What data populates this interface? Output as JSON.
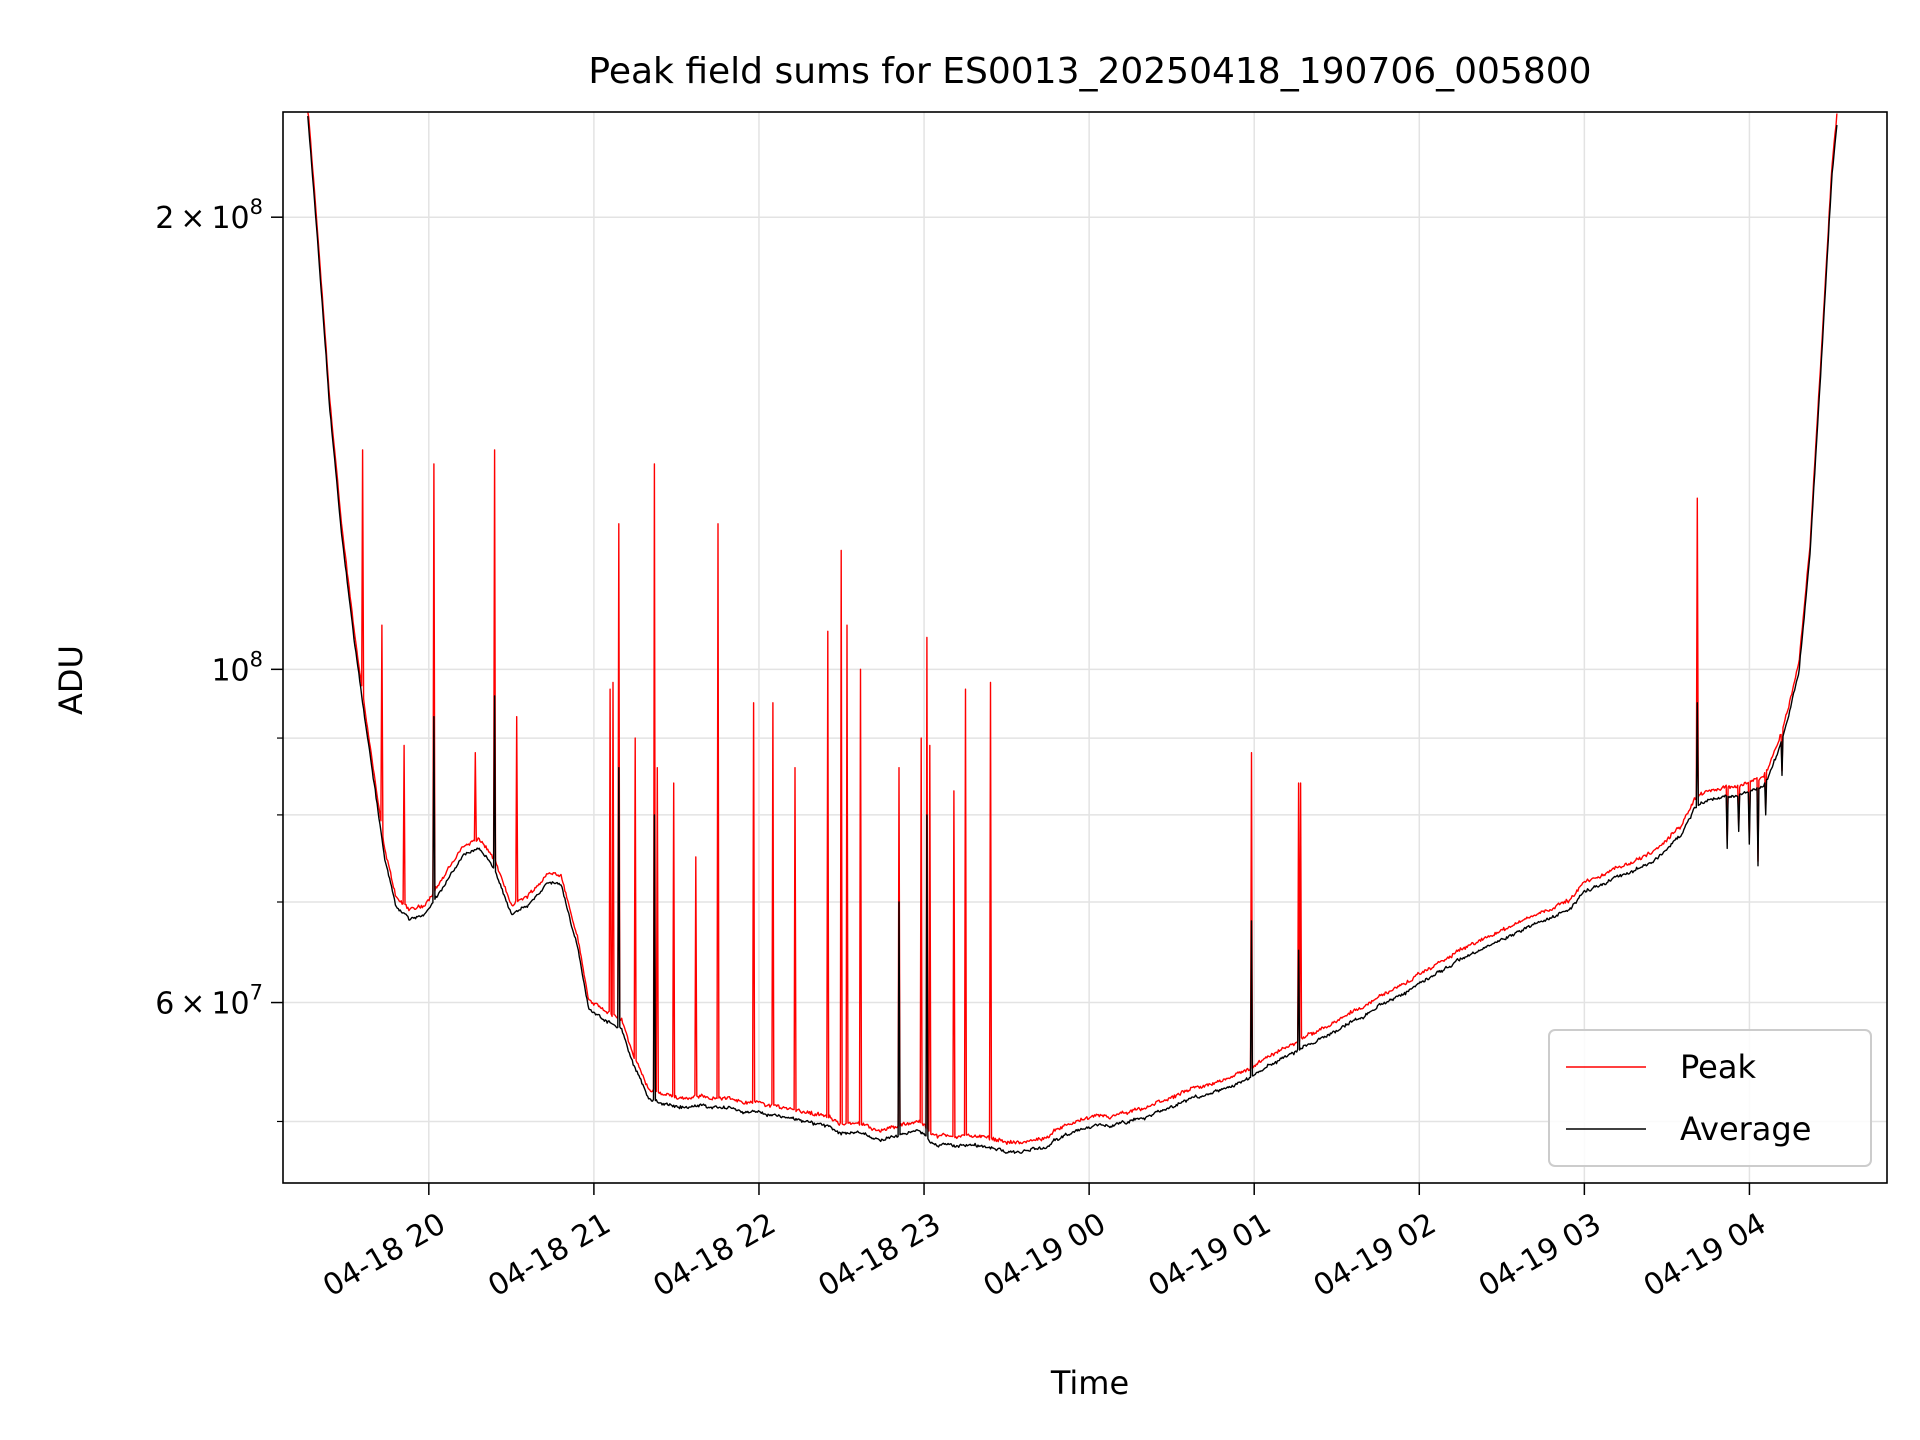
{
  "chart_data": {
    "type": "line",
    "title": "Peak field sums for ES0013_20250418_190706_005800",
    "xlabel": "Time",
    "ylabel": "ADU",
    "yscale": "log",
    "xlim": [
      "2025-04-18 19:07",
      "2025-04-19 04:50"
    ],
    "ylim": [
      45500000,
      235000000
    ],
    "grid": true,
    "legend_position": "lower-right",
    "x_ticks": [
      {
        "t": "2025-04-18 20:00",
        "label": "04-18 20"
      },
      {
        "t": "2025-04-18 21:00",
        "label": "04-18 21"
      },
      {
        "t": "2025-04-18 22:00",
        "label": "04-18 22"
      },
      {
        "t": "2025-04-18 23:00",
        "label": "04-18 23"
      },
      {
        "t": "2025-04-19 00:00",
        "label": "04-19 00"
      },
      {
        "t": "2025-04-19 01:00",
        "label": "04-19 01"
      },
      {
        "t": "2025-04-19 02:00",
        "label": "04-19 02"
      },
      {
        "t": "2025-04-19 03:00",
        "label": "04-19 03"
      },
      {
        "t": "2025-04-19 04:00",
        "label": "04-19 04"
      }
    ],
    "y_ticks_major": [
      {
        "value": 200000000,
        "mantissa": "2",
        "exponent": "8"
      },
      {
        "value": 100000000,
        "mantissa": "",
        "exponent": "8"
      },
      {
        "value": 60000000,
        "mantissa": "6",
        "exponent": "7"
      }
    ],
    "y_ticks_minor": [
      50000000,
      70000000,
      80000000,
      90000000
    ],
    "tick_multiply_sign": "×",
    "tick_base": "10",
    "series": [
      {
        "name": "Peak",
        "color": "#ff0000",
        "baseline": [
          [
            "2025-04-18 19:16",
            235000000
          ],
          [
            "2025-04-18 19:19",
            200000000
          ],
          [
            "2025-04-18 19:24",
            150000000
          ],
          [
            "2025-04-18 19:28",
            125000000
          ],
          [
            "2025-04-18 19:33",
            105000000
          ],
          [
            "2025-04-18 19:38",
            90000000
          ],
          [
            "2025-04-18 19:44",
            75000000
          ],
          [
            "2025-04-18 19:48",
            70000000
          ],
          [
            "2025-04-18 19:53",
            68500000
          ],
          [
            "2025-04-18 19:58",
            69000000
          ],
          [
            "2025-04-18 20:05",
            72000000
          ],
          [
            "2025-04-18 20:12",
            75500000
          ],
          [
            "2025-04-18 20:18",
            76500000
          ],
          [
            "2025-04-18 20:24",
            74000000
          ],
          [
            "2025-04-18 20:30",
            69000000
          ],
          [
            "2025-04-18 20:36",
            70000000
          ],
          [
            "2025-04-18 20:43",
            72500000
          ],
          [
            "2025-04-18 20:48",
            72500000
          ],
          [
            "2025-04-18 20:54",
            66000000
          ],
          [
            "2025-04-18 20:58",
            60000000
          ],
          [
            "2025-04-18 21:05",
            58500000
          ],
          [
            "2025-04-18 21:10",
            58000000
          ],
          [
            "2025-04-18 21:15",
            54500000
          ],
          [
            "2025-04-18 21:20",
            52000000
          ],
          [
            "2025-04-18 21:30",
            51500000
          ],
          [
            "2025-04-18 21:45",
            51500000
          ],
          [
            "2025-04-18 22:00",
            51000000
          ],
          [
            "2025-04-18 22:15",
            50500000
          ],
          [
            "2025-04-18 22:30",
            49500000
          ],
          [
            "2025-04-18 22:45",
            49000000
          ],
          [
            "2025-04-18 22:58",
            49500000
          ],
          [
            "2025-04-18 23:05",
            48500000
          ],
          [
            "2025-04-18 23:20",
            48500000
          ],
          [
            "2025-04-18 23:35",
            48000000
          ],
          [
            "2025-04-18 23:45",
            48300000
          ],
          [
            "2025-04-18 23:50",
            49300000
          ],
          [
            "2025-04-19 00:00",
            49800000
          ],
          [
            "2025-04-19 00:10",
            50000000
          ],
          [
            "2025-04-19 00:20",
            50500000
          ],
          [
            "2025-04-19 00:30",
            51500000
          ],
          [
            "2025-04-19 00:45",
            52500000
          ],
          [
            "2025-04-19 01:00",
            54000000
          ],
          [
            "2025-04-19 01:15",
            56000000
          ],
          [
            "2025-04-19 01:30",
            58000000
          ],
          [
            "2025-04-19 01:45",
            60000000
          ],
          [
            "2025-04-19 02:00",
            62000000
          ],
          [
            "2025-04-19 02:15",
            64500000
          ],
          [
            "2025-04-19 02:30",
            66500000
          ],
          [
            "2025-04-19 02:45",
            68500000
          ],
          [
            "2025-04-19 02:55",
            69700000
          ],
          [
            "2025-04-19 03:00",
            71500000
          ],
          [
            "2025-04-19 03:15",
            73500000
          ],
          [
            "2025-04-19 03:25",
            75000000
          ],
          [
            "2025-04-19 03:35",
            78000000
          ],
          [
            "2025-04-19 03:40",
            81500000
          ],
          [
            "2025-04-19 03:45",
            82500000
          ],
          [
            "2025-04-19 03:55",
            83000000
          ],
          [
            "2025-04-19 04:05",
            84000000
          ],
          [
            "2025-04-19 04:10",
            88000000
          ],
          [
            "2025-04-19 04:14",
            93000000
          ],
          [
            "2025-04-19 04:18",
            100000000
          ],
          [
            "2025-04-19 04:22",
            120000000
          ],
          [
            "2025-04-19 04:26",
            160000000
          ],
          [
            "2025-04-19 04:30",
            215000000
          ],
          [
            "2025-04-19 04:32",
            235000000
          ]
        ],
        "spikes": [
          [
            "2025-04-18 19:36",
            140000000
          ],
          [
            "2025-04-18 19:43",
            107000000
          ],
          [
            "2025-04-18 19:51",
            89000000
          ],
          [
            "2025-04-18 20:02",
            137000000
          ],
          [
            "2025-04-18 20:17",
            88000000
          ],
          [
            "2025-04-18 20:24",
            140000000
          ],
          [
            "2025-04-18 20:32",
            93000000
          ],
          [
            "2025-04-18 21:06",
            97000000
          ],
          [
            "2025-04-18 21:07",
            98000000
          ],
          [
            "2025-04-18 21:09",
            125000000
          ],
          [
            "2025-04-18 21:15",
            90000000
          ],
          [
            "2025-04-18 21:22",
            137000000
          ],
          [
            "2025-04-18 21:23",
            86000000
          ],
          [
            "2025-04-18 21:29",
            84000000
          ],
          [
            "2025-04-18 21:37",
            75000000
          ],
          [
            "2025-04-18 21:45",
            125000000
          ],
          [
            "2025-04-18 21:58",
            95000000
          ],
          [
            "2025-04-18 22:05",
            95000000
          ],
          [
            "2025-04-18 22:13",
            86000000
          ],
          [
            "2025-04-18 22:25",
            106000000
          ],
          [
            "2025-04-18 22:30",
            120000000
          ],
          [
            "2025-04-18 22:32",
            107000000
          ],
          [
            "2025-04-18 22:37",
            100000000
          ],
          [
            "2025-04-18 22:51",
            86000000
          ],
          [
            "2025-04-18 22:59",
            90000000
          ],
          [
            "2025-04-18 23:01",
            105000000
          ],
          [
            "2025-04-18 23:02",
            89000000
          ],
          [
            "2025-04-18 23:11",
            83000000
          ],
          [
            "2025-04-18 23:15",
            97000000
          ],
          [
            "2025-04-18 23:24",
            98000000
          ],
          [
            "2025-04-19 00:59",
            88000000
          ],
          [
            "2025-04-19 01:16",
            84000000
          ],
          [
            "2025-04-19 01:17",
            84000000
          ],
          [
            "2025-04-19 03:41",
            130000000
          ]
        ]
      },
      {
        "name": "Average",
        "color": "#000000",
        "spikes": [
          [
            "2025-04-18 20:02",
            93000000
          ],
          [
            "2025-04-18 20:24",
            96000000
          ],
          [
            "2025-04-18 21:09",
            86000000
          ],
          [
            "2025-04-18 21:22",
            80000000
          ],
          [
            "2025-04-18 22:51",
            70000000
          ],
          [
            "2025-04-18 23:01",
            80000000
          ],
          [
            "2025-04-19 00:59",
            68000000
          ],
          [
            "2025-04-19 01:16",
            65000000
          ],
          [
            "2025-04-19 03:41",
            95000000
          ]
        ],
        "dips": [
          [
            "2025-04-19 03:52",
            76000000
          ],
          [
            "2025-04-19 03:56",
            78000000
          ],
          [
            "2025-04-19 04:00",
            76500000
          ],
          [
            "2025-04-19 04:03",
            74000000
          ],
          [
            "2025-04-19 04:06",
            80000000
          ],
          [
            "2025-04-19 04:12",
            85000000
          ]
        ]
      }
    ]
  }
}
